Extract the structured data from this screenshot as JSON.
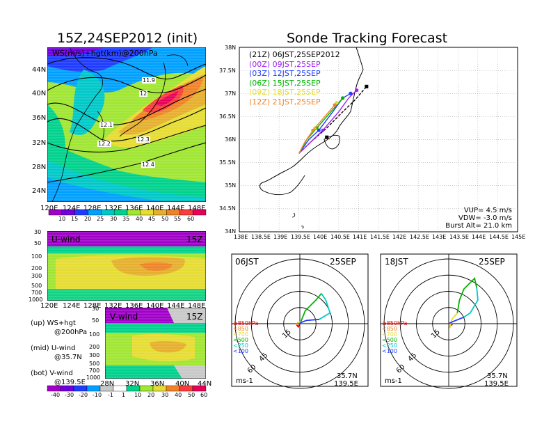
{
  "left": {
    "title": "15Z,24SEP2012 (init)",
    "map_label": "WS(m/s)+hgt(km)@200hPa",
    "map_lat_ticks": [
      "44N",
      "40N",
      "36N",
      "32N",
      "28N",
      "24N"
    ],
    "map_lon_ticks": [
      "120E",
      "124E",
      "128E",
      "132E",
      "136E",
      "140E",
      "144E",
      "148E"
    ],
    "contour_labels": [
      "11.9",
      "12",
      "12.1",
      "12.2",
      "12.3",
      "12.4"
    ],
    "ws_colorbar": [
      "10",
      "15",
      "20",
      "25",
      "30",
      "35",
      "40",
      "45",
      "50",
      "55",
      "60"
    ],
    "u_label": "U-wind",
    "u_time": "15Z",
    "p_ticks": [
      "30",
      "50",
      "100",
      "200",
      "300",
      "500",
      "700",
      "1000"
    ],
    "u_lon_ticks": [
      "120E",
      "124E",
      "128E",
      "132E",
      "136E",
      "140E",
      "144E",
      "148E"
    ],
    "v_label": "V-wind",
    "v_time": "15Z",
    "v_lat_ticks": [
      "28N",
      "32N",
      "36N",
      "40N",
      "44N"
    ],
    "wind_colorbar": [
      "-40",
      "-30",
      "-20",
      "-10",
      "-1",
      "1",
      "10",
      "20",
      "30",
      "40",
      "50",
      "60"
    ],
    "notes": [
      {
        "a": "(up) WS+hgt",
        "b": "@200hPa"
      },
      {
        "a": "(mid) U-wind",
        "b": "@35.7N"
      },
      {
        "a": "(bot) V-wind",
        "b": "@139.5E"
      }
    ]
  },
  "right": {
    "title": "Sonde Tracking Forecast",
    "lat_ticks": [
      "38N",
      "37.5N",
      "37N",
      "36.5N",
      "36N",
      "35.5N",
      "35N",
      "34.5N",
      "34N"
    ],
    "lon_ticks": [
      "138E",
      "138.5E",
      "139E",
      "139.5E",
      "140E",
      "140.5E",
      "141E",
      "141.5E",
      "142E",
      "142.5E",
      "143E",
      "143.5E",
      "144E",
      "144.5E",
      "145E"
    ],
    "legend": [
      {
        "z": "(21Z)",
        "t": "06JST,25SEP2012",
        "color": "#000000"
      },
      {
        "z": "(00Z)",
        "t": "09JST,25SEP",
        "color": "#a020f0"
      },
      {
        "z": "(03Z)",
        "t": "12JST,25SEP",
        "color": "#1e3cff"
      },
      {
        "z": "(06Z)",
        "t": "15JST,25SEP",
        "color": "#00b400"
      },
      {
        "z": "(09Z)",
        "t": "18JST,25SEP",
        "color": "#e6dc32"
      },
      {
        "z": "(12Z)",
        "t": "21JST,25SEP",
        "color": "#f08228"
      }
    ],
    "params": [
      "VUP= 4.5 m/s",
      "VDW= -3.0 m/s",
      "Burst Alt= 21.0 km"
    ],
    "hodo": [
      {
        "time": "06JST",
        "date": "25SEP",
        "lat": "35.7N",
        "lon": "139.5E",
        "units": "ms-1"
      },
      {
        "time": "18JST",
        "date": "25SEP",
        "lat": "35.7N",
        "lon": "139.5E",
        "units": "ms-1"
      }
    ],
    "ring_labels": [
      "15",
      "45",
      "60"
    ],
    "hodo_legend": [
      {
        "t": "≥850hPa",
        "color": "#e00000"
      },
      {
        "t": "<850",
        "color": "#f08228"
      },
      {
        "t": "<700",
        "color": "#e6dc32"
      },
      {
        "t": "<500",
        "color": "#00b400"
      },
      {
        "t": "<250",
        "color": "#00c8c8"
      },
      {
        "t": "<100",
        "color": "#1e3cff"
      }
    ]
  },
  "colors": {
    "ws_scale": [
      "#a000c8",
      "#6e00dc",
      "#1e3cff",
      "#00a0ff",
      "#00c8c8",
      "#00d28c",
      "#a0e632",
      "#e6dc32",
      "#e6af2d",
      "#f08228",
      "#fa3c3c",
      "#e6005a"
    ],
    "wind_scale": [
      "#a000c8",
      "#6e00dc",
      "#1e3cff",
      "#00a0ff",
      "#c8c8c8",
      "#ffffff",
      "#00d28c",
      "#a0e632",
      "#e6dc32",
      "#f08228",
      "#fa3c3c",
      "#e6005a"
    ]
  },
  "chart_data": [
    {
      "type": "heatmap",
      "title": "15Z,24SEP2012 (init)",
      "label": "WS(m/s)+hgt(km)@200hPa",
      "x_ticks": [
        "120E",
        "124E",
        "128E",
        "132E",
        "136E",
        "140E",
        "144E",
        "148E"
      ],
      "y_ticks": [
        "44N",
        "40N",
        "36N",
        "32N",
        "28N",
        "24N"
      ],
      "colorbar": [
        10,
        15,
        20,
        25,
        30,
        35,
        40,
        45,
        50,
        55,
        60
      ],
      "contours_km": [
        11.9,
        12,
        12.1,
        12.2,
        12.3,
        12.4
      ]
    },
    {
      "type": "heatmap",
      "label": "U-wind",
      "time": "15Z",
      "x_ticks": [
        "120E",
        "124E",
        "128E",
        "132E",
        "136E",
        "140E",
        "144E",
        "148E"
      ],
      "y_ticks": [
        30,
        50,
        100,
        200,
        300,
        500,
        700,
        1000
      ]
    },
    {
      "type": "heatmap",
      "label": "V-wind",
      "time": "15Z",
      "x_ticks": [
        "28N",
        "32N",
        "36N",
        "40N",
        "44N"
      ],
      "y_ticks": [
        30,
        50,
        100,
        200,
        300,
        500,
        700,
        1000
      ],
      "colorbar": [
        -40,
        -30,
        -20,
        -10,
        -1,
        1,
        10,
        20,
        30,
        40,
        50,
        60
      ]
    },
    {
      "type": "line",
      "title": "Sonde Tracking Forecast",
      "xlim": [
        138,
        145
      ],
      "ylim": [
        34,
        38
      ],
      "launch": [
        139.5,
        35.7
      ],
      "series": [
        {
          "name": "06JST,25SEP2012",
          "color": "#000000",
          "dashed": true,
          "points": [
            [
              139.5,
              35.7
            ],
            [
              139.8,
              35.95
            ],
            [
              140.2,
              36.25
            ],
            [
              140.6,
              36.6
            ],
            [
              140.9,
              36.85
            ],
            [
              141.2,
              37.15
            ]
          ]
        },
        {
          "name": "09JST,25SEP",
          "color": "#a020f0",
          "points": [
            [
              139.5,
              35.7
            ],
            [
              139.8,
              35.95
            ],
            [
              140.1,
              36.2
            ],
            [
              140.5,
              36.6
            ],
            [
              140.75,
              36.9
            ],
            [
              140.95,
              37.07
            ]
          ]
        },
        {
          "name": "12JST,25SEP",
          "color": "#1e3cff",
          "points": [
            [
              139.5,
              35.7
            ],
            [
              139.75,
              36.0
            ],
            [
              140.0,
              36.2
            ],
            [
              140.35,
              36.6
            ],
            [
              140.6,
              36.9
            ],
            [
              140.8,
              37.0
            ]
          ]
        },
        {
          "name": "15JST,25SEP",
          "color": "#00b400",
          "points": [
            [
              139.5,
              35.7
            ],
            [
              139.7,
              36.0
            ],
            [
              139.95,
              36.25
            ],
            [
              140.25,
              36.55
            ],
            [
              140.5,
              36.8
            ],
            [
              140.6,
              36.9
            ]
          ]
        },
        {
          "name": "18JST,25SEP",
          "color": "#e6dc32",
          "points": [
            [
              139.5,
              35.7
            ],
            [
              139.65,
              35.95
            ],
            [
              139.9,
              36.25
            ],
            [
              140.2,
              36.55
            ],
            [
              140.45,
              36.8
            ]
          ]
        },
        {
          "name": "21JST,25SEP",
          "color": "#f08228",
          "points": [
            [
              139.5,
              35.7
            ],
            [
              139.65,
              35.95
            ],
            [
              139.85,
              36.2
            ],
            [
              140.15,
              36.5
            ],
            [
              140.4,
              36.75
            ]
          ]
        }
      ]
    },
    {
      "type": "line",
      "title": "06JST 25SEP",
      "rings_ms": [
        15,
        30,
        45,
        60
      ],
      "series": [
        {
          "name": "≥850hPa",
          "color": "#e00000",
          "points": [
            [
              0,
              0
            ],
            [
              -1.5,
              -3
            ],
            [
              -3,
              -1
            ]
          ]
        },
        {
          "name": "<850",
          "color": "#f08228",
          "points": [
            [
              -3,
              -1
            ],
            [
              -2,
              1
            ]
          ]
        },
        {
          "name": "<700",
          "color": "#e6dc32",
          "points": [
            [
              -2,
              1
            ],
            [
              1,
              2
            ]
          ]
        },
        {
          "name": "<500",
          "color": "#00b400",
          "points": [
            [
              1,
              2
            ],
            [
              5,
              12
            ],
            [
              15,
              22
            ],
            [
              20,
              28
            ]
          ]
        },
        {
          "name": "<250",
          "color": "#00c8c8",
          "points": [
            [
              20,
              28
            ],
            [
              24,
              22
            ],
            [
              28,
              10
            ],
            [
              18,
              4
            ]
          ]
        },
        {
          "name": "<100",
          "color": "#1e3cff",
          "points": [
            [
              18,
              4
            ],
            [
              6,
              3
            ],
            [
              1,
              1
            ],
            [
              0,
              0
            ]
          ]
        }
      ]
    },
    {
      "type": "line",
      "title": "18JST 25SEP",
      "rings_ms": [
        15,
        30,
        45,
        60
      ],
      "series": [
        {
          "name": "≥850hPa",
          "color": "#e00000",
          "points": [
            [
              0,
              0
            ],
            [
              2,
              1
            ],
            [
              3,
              -1
            ],
            [
              1,
              -2
            ]
          ]
        },
        {
          "name": "<850",
          "color": "#f08228",
          "points": [
            [
              1,
              -2
            ],
            [
              1,
              -4
            ]
          ]
        },
        {
          "name": "<700",
          "color": "#e6dc32",
          "points": [
            [
              1,
              -4
            ],
            [
              3,
              4
            ],
            [
              8,
              10
            ]
          ]
        },
        {
          "name": "<500",
          "color": "#00b400",
          "points": [
            [
              8,
              10
            ],
            [
              10,
              22
            ],
            [
              14,
              32
            ],
            [
              24,
              42
            ],
            [
              26,
              33
            ]
          ]
        },
        {
          "name": "<250",
          "color": "#00c8c8",
          "points": [
            [
              26,
              33
            ],
            [
              27,
              22
            ],
            [
              20,
              10
            ],
            [
              14,
              6
            ]
          ]
        },
        {
          "name": "<100",
          "color": "#1e3cff",
          "points": [
            [
              14,
              6
            ],
            [
              4,
              2
            ],
            [
              0,
              0
            ]
          ]
        }
      ]
    }
  ]
}
